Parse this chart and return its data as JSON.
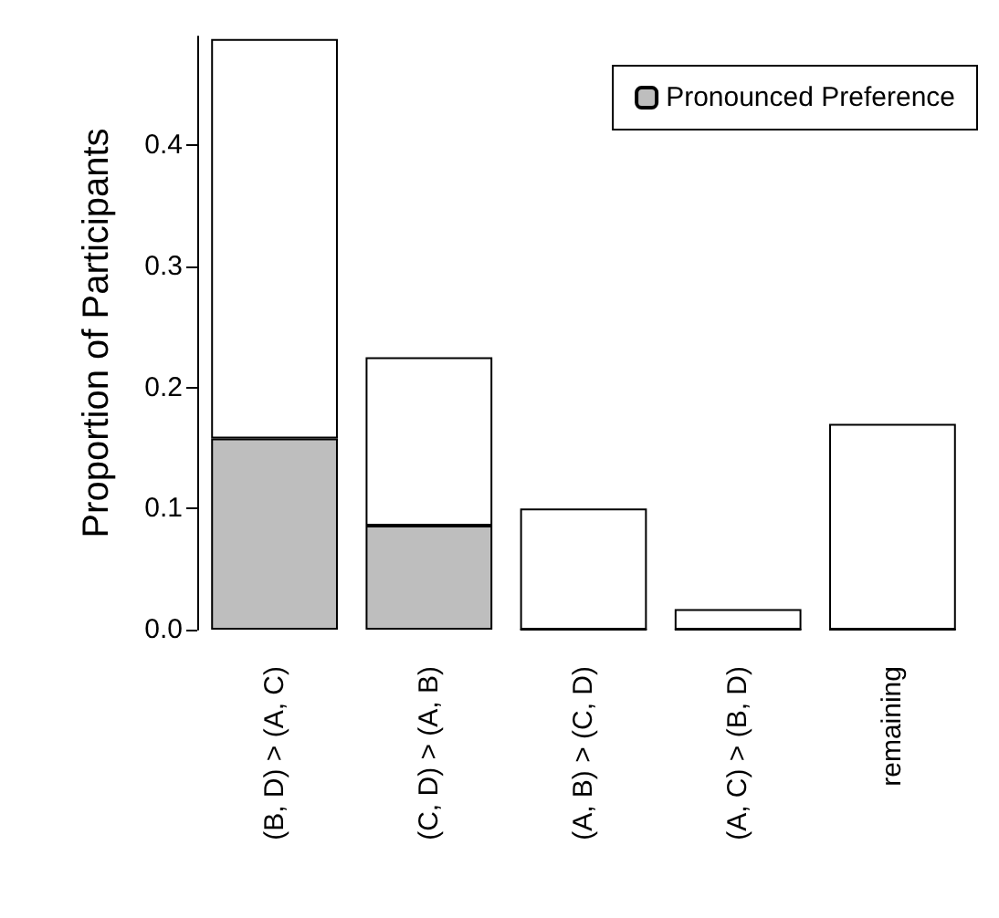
{
  "chart_data": {
    "type": "bar",
    "stacked": true,
    "ylabel": "Proportion of Participants",
    "categories": [
      "(B, D) > (A, C)",
      "(C, D) > (A, B)",
      "(A, B) > (C, D)",
      "(A, C) > (B, D)",
      "remaining"
    ],
    "series": [
      {
        "name": "Pronounced Preference",
        "color": "#bebebe",
        "values": [
          0.158,
          0.086,
          0,
          0,
          0
        ]
      },
      {
        "color": "#ffffff",
        "values": [
          0.33,
          0.139,
          0.1,
          0.017,
          0.17
        ]
      }
    ],
    "ylim": [
      0,
      0.49
    ],
    "yticks": [
      {
        "value": 0,
        "label": "0.0"
      },
      {
        "value": 0.1,
        "label": "0.1"
      },
      {
        "value": 0.2,
        "label": "0.2"
      },
      {
        "value": 0.3,
        "label": "0.3"
      },
      {
        "value": 0.4,
        "label": "0.4"
      }
    ],
    "grid": false,
    "legend": "top right"
  }
}
